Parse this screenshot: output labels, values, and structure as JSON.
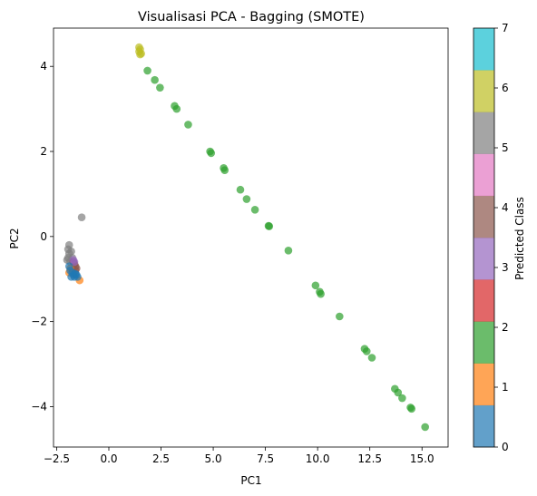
{
  "chart_data": {
    "type": "scatter",
    "title": "Visualisasi PCA - Bagging (SMOTE)",
    "xlabel": "PC1",
    "ylabel": "PC2",
    "xlim": [
      -2.65,
      16.25
    ],
    "ylim": [
      -4.95,
      4.9
    ],
    "xticks": [
      -2.5,
      0.0,
      2.5,
      5.0,
      7.5,
      10.0,
      12.5,
      15.0
    ],
    "xtick_labels": [
      "−2.5",
      "0.0",
      "2.5",
      "5.0",
      "7.5",
      "10.0",
      "12.5",
      "15.0"
    ],
    "yticks": [
      -4,
      -2,
      0,
      2,
      4
    ],
    "ytick_labels": [
      "−4",
      "−2",
      "0",
      "2",
      "4"
    ],
    "grid": false,
    "point_alpha": 0.7,
    "colorbar": {
      "label": "Predicted Class",
      "ticks": [
        "0",
        "1",
        "2",
        "3",
        "4",
        "5",
        "6",
        "7"
      ],
      "colors": [
        "#1f77b4",
        "#ff7f0e",
        "#2ca02c",
        "#d62728",
        "#8c564b",
        "#7f7f7f",
        "#bcbd22",
        "#17becf"
      ],
      "band_colors": [
        "#1f77b4",
        "#ff7f0e",
        "#2ca02c",
        "#d62728",
        "#9467bd",
        "#8c564b",
        "#e377c2",
        "#7f7f7f",
        "#bcbd22",
        "#17becf"
      ]
    },
    "series": [
      {
        "class": 5,
        "color": "#7f7f7f",
        "points": [
          [
            -1.3,
            0.45
          ],
          [
            -1.9,
            -0.2
          ],
          [
            -1.95,
            -0.3
          ],
          [
            -1.9,
            -0.4
          ],
          [
            -1.95,
            -0.5
          ],
          [
            -2.0,
            -0.55
          ],
          [
            -1.85,
            -0.6
          ],
          [
            -1.8,
            -0.35
          ],
          [
            -1.75,
            -0.5
          ]
        ]
      },
      {
        "class": 6,
        "color": "#bcbd22",
        "points": [
          [
            1.45,
            4.45
          ],
          [
            1.5,
            4.4
          ],
          [
            1.45,
            4.35
          ],
          [
            1.55,
            4.3
          ],
          [
            1.5,
            4.28
          ]
        ]
      },
      {
        "class": 2,
        "color": "#2ca02c",
        "points": [
          [
            1.85,
            3.9
          ],
          [
            2.2,
            3.68
          ],
          [
            2.45,
            3.5
          ],
          [
            3.15,
            3.07
          ],
          [
            3.25,
            3.0
          ],
          [
            3.8,
            2.63
          ],
          [
            4.85,
            2.0
          ],
          [
            4.9,
            1.96
          ],
          [
            5.5,
            1.61
          ],
          [
            5.55,
            1.56
          ],
          [
            6.3,
            1.1
          ],
          [
            6.6,
            0.88
          ],
          [
            7.0,
            0.63
          ],
          [
            7.65,
            0.25
          ],
          [
            7.68,
            0.24
          ],
          [
            8.6,
            -0.33
          ],
          [
            9.9,
            -1.15
          ],
          [
            10.1,
            -1.3
          ],
          [
            10.15,
            -1.35
          ],
          [
            11.05,
            -1.88
          ],
          [
            12.25,
            -2.64
          ],
          [
            12.35,
            -2.7
          ],
          [
            12.6,
            -2.85
          ],
          [
            13.7,
            -3.58
          ],
          [
            13.85,
            -3.67
          ],
          [
            14.05,
            -3.8
          ],
          [
            14.45,
            -4.02
          ],
          [
            14.5,
            -4.05
          ],
          [
            15.15,
            -4.48
          ]
        ]
      },
      {
        "class": 4,
        "color": "#8c564b",
        "points": [
          [
            -1.65,
            -0.65
          ],
          [
            -1.6,
            -0.7
          ],
          [
            -1.55,
            -0.75
          ],
          [
            -1.6,
            -0.8
          ],
          [
            -1.7,
            -0.6
          ]
        ]
      },
      {
        "class": 3,
        "color": "#9467bd",
        "points": [
          [
            -1.7,
            -0.55
          ],
          [
            -1.65,
            -0.6
          ]
        ]
      },
      {
        "class": 1,
        "color": "#ff7f0e",
        "points": [
          [
            -1.4,
            -1.03
          ],
          [
            -1.9,
            -0.85
          ],
          [
            -1.85,
            -0.75
          ]
        ]
      },
      {
        "class": 0,
        "color": "#1f77b4",
        "points": [
          [
            -1.9,
            -0.7
          ],
          [
            -1.85,
            -0.8
          ],
          [
            -1.8,
            -0.95
          ],
          [
            -1.7,
            -0.9
          ],
          [
            -1.65,
            -0.95
          ],
          [
            -1.55,
            -0.9
          ],
          [
            -1.5,
            -0.95
          ],
          [
            -1.75,
            -0.85
          ],
          [
            -1.6,
            -0.88
          ]
        ]
      }
    ]
  }
}
